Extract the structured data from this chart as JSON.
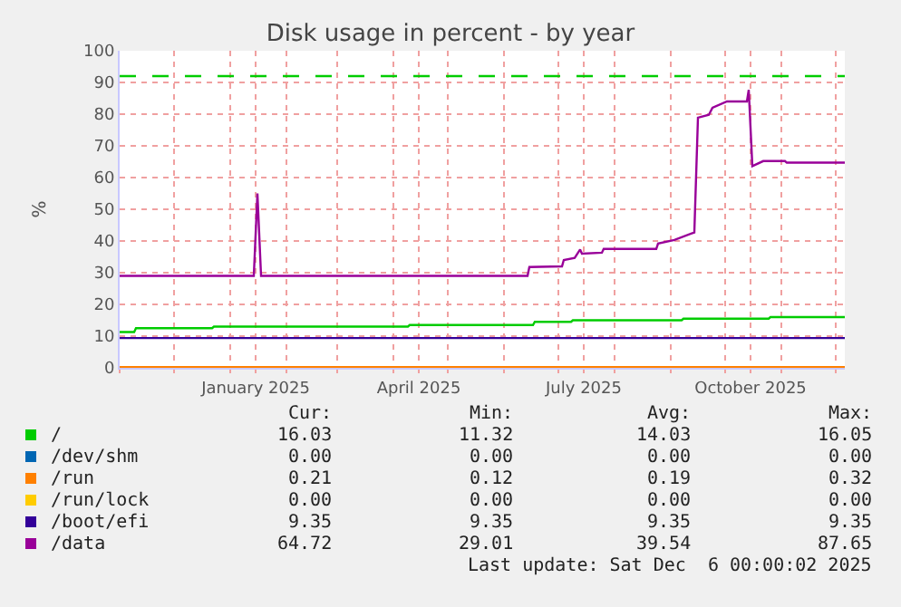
{
  "chart_data": {
    "type": "line",
    "title": "Disk usage in percent - by year",
    "ylabel": "%",
    "xlim": [
      "2024-11-01",
      "2025-12-06"
    ],
    "xticks": [
      {
        "value": "2024-11-01",
        "label": null
      },
      {
        "value": "2024-12-01",
        "label": null
      },
      {
        "value": "2025-01-01",
        "label": null
      },
      {
        "value": "2025-01-15",
        "label": "January 2025"
      },
      {
        "value": "2025-02-01",
        "label": null
      },
      {
        "value": "2025-03-01",
        "label": null
      },
      {
        "value": "2025-04-01",
        "label": null
      },
      {
        "value": "2025-04-15",
        "label": "April 2025"
      },
      {
        "value": "2025-05-01",
        "label": null
      },
      {
        "value": "2025-06-01",
        "label": null
      },
      {
        "value": "2025-07-01",
        "label": null
      },
      {
        "value": "2025-07-15",
        "label": "July 2025"
      },
      {
        "value": "2025-08-01",
        "label": null
      },
      {
        "value": "2025-09-01",
        "label": null
      },
      {
        "value": "2025-10-01",
        "label": null
      },
      {
        "value": "2025-10-15",
        "label": "October 2025"
      },
      {
        "value": "2025-11-01",
        "label": null
      },
      {
        "value": "2025-12-01",
        "label": null
      }
    ],
    "ylim": [
      0,
      100
    ],
    "yticks": [
      0,
      10,
      20,
      30,
      40,
      50,
      60,
      70,
      80,
      90,
      100
    ],
    "grid": true,
    "legend": "bottom left",
    "marker": "none",
    "line_style": "solid",
    "ref_lines": [
      {
        "axis": "y",
        "value": 92,
        "label": null,
        "color": "#00cc00",
        "line_style": "dashed"
      }
    ],
    "series": [
      {
        "name": "/",
        "color": "#00cc00",
        "x": [
          "2024-11-01",
          "2024-11-09",
          "2024-11-10",
          "2024-12-22",
          "2024-12-23",
          "2025-04-09",
          "2025-04-10",
          "2025-06-17",
          "2025-06-18",
          "2025-07-08",
          "2025-07-09",
          "2025-09-07",
          "2025-09-08",
          "2025-10-25",
          "2025-10-26",
          "2025-12-06"
        ],
        "values": [
          11.3,
          11.3,
          12.5,
          12.5,
          13.0,
          13.0,
          13.5,
          13.5,
          14.5,
          14.5,
          15.0,
          15.0,
          15.5,
          15.5,
          16.0,
          16.0
        ]
      },
      {
        "name": "/dev/shm",
        "color": "#0066b3",
        "values": [
          null,
          null
        ]
      },
      {
        "name": "/run",
        "color": "#ff8000",
        "x": [
          "2024-11-01",
          "2025-12-06"
        ],
        "values": [
          0.2,
          0.2
        ]
      },
      {
        "name": "/run/lock",
        "color": "#ffcc00",
        "values": [
          null,
          null
        ]
      },
      {
        "name": "/boot/efi",
        "color": "#330099",
        "x": [
          "2024-11-01",
          "2025-12-06"
        ],
        "values": [
          9.4,
          9.4
        ]
      },
      {
        "name": "/data",
        "color": "#990099",
        "x": [
          "2024-11-01",
          "2025-01-14",
          "2025-01-16",
          "2025-01-18",
          "2025-06-14",
          "2025-06-15",
          "2025-07-03",
          "2025-07-04",
          "2025-07-10",
          "2025-07-13",
          "2025-07-14",
          "2025-07-25",
          "2025-07-26",
          "2025-08-24",
          "2025-08-25",
          "2025-09-03",
          "2025-09-14",
          "2025-09-16",
          "2025-09-22",
          "2025-09-24",
          "2025-10-02",
          "2025-10-13",
          "2025-10-14",
          "2025-10-16",
          "2025-10-22",
          "2025-11-03",
          "2025-11-04",
          "2025-12-06"
        ],
        "values": [
          29.0,
          29.0,
          55,
          29.0,
          29.0,
          31.8,
          32,
          34,
          34.7,
          37.3,
          36,
          36.3,
          37.5,
          37.5,
          39.2,
          40.3,
          42.7,
          78.9,
          79.8,
          82,
          84,
          84,
          87.7,
          63.6,
          65.2,
          65.2,
          64.7,
          64.7
        ]
      }
    ],
    "annotations": [
      "Cur:",
      "Min:",
      "Avg:",
      "Max:",
      "16.03",
      "11.32",
      "14.03",
      "16.05",
      "0.00",
      "0.00",
      "0.00",
      "0.00",
      "0.21",
      "0.12",
      "0.19",
      "0.32",
      "0.00",
      "0.00",
      "0.00",
      "0.00",
      "9.35",
      "9.35",
      "9.35",
      "9.35",
      "64.72",
      "29.01",
      "39.54",
      "87.65",
      "Last update: Sat Dec  6 00:00:02 2025"
    ]
  }
}
